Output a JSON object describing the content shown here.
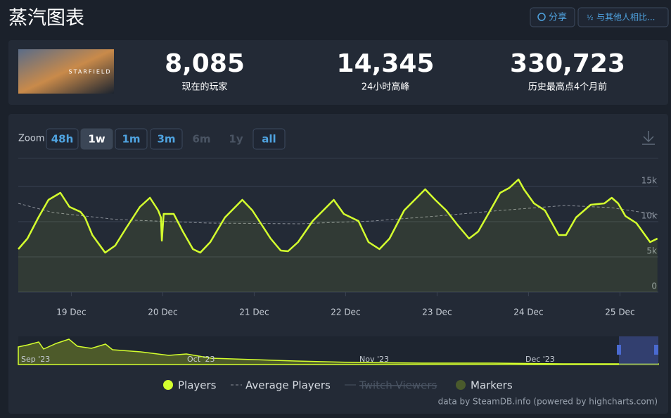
{
  "header": {
    "title": "蒸汽图表",
    "buttons": [
      "分享",
      "与其他人相比..."
    ]
  },
  "game": {
    "image_text": "STARFIELD"
  },
  "stats": [
    {
      "value": "8,085",
      "label": "现在的玩家"
    },
    {
      "value": "14,345",
      "label": "24小时高峰"
    },
    {
      "value": "330,723",
      "label": "历史最高点4个月前"
    }
  ],
  "zoom": {
    "label": "Zoom",
    "buttons": [
      {
        "label": "48h",
        "state": "enabled"
      },
      {
        "label": "1w",
        "state": "active"
      },
      {
        "label": "1m",
        "state": "enabled"
      },
      {
        "label": "3m",
        "state": "enabled"
      },
      {
        "label": "6m",
        "state": "disabled"
      },
      {
        "label": "1y",
        "state": "disabled"
      },
      {
        "label": "all",
        "state": "enabled"
      }
    ]
  },
  "chart_data": {
    "type": "line",
    "xlim": [
      18.42,
      25.42
    ],
    "xticks": [
      {
        "value": 19,
        "label": "19 Dec"
      },
      {
        "value": 20,
        "label": "20 Dec"
      },
      {
        "value": 21,
        "label": "21 Dec"
      },
      {
        "value": 22,
        "label": "22 Dec"
      },
      {
        "value": 23,
        "label": "23 Dec"
      },
      {
        "value": 24,
        "label": "24 Dec"
      },
      {
        "value": 25,
        "label": "25 Dec"
      }
    ],
    "ylim": [
      0,
      19000
    ],
    "yticks": [
      0,
      {
        "value": 5000,
        "label": "5k"
      },
      {
        "value": 10000,
        "label": "10k"
      },
      {
        "value": 15000,
        "label": "15k"
      }
    ],
    "grid": true,
    "series": [
      {
        "name": "Players",
        "color": "#d4ff2e",
        "dash": false,
        "area": true,
        "x": [
          18.42,
          18.52,
          18.64,
          18.75,
          18.88,
          18.98,
          19.1,
          19.15,
          19.23,
          19.37,
          19.48,
          19.6,
          19.75,
          19.86,
          19.95,
          19.98,
          19.99,
          20.01,
          20.12,
          20.22,
          20.33,
          20.41,
          20.52,
          20.68,
          20.87,
          20.98,
          21.08,
          21.18,
          21.29,
          21.37,
          21.48,
          21.64,
          21.87,
          21.98,
          22.14,
          22.25,
          22.37,
          22.48,
          22.64,
          22.87,
          22.98,
          23.1,
          23.22,
          23.35,
          23.45,
          23.56,
          23.69,
          23.79,
          23.89,
          23.95,
          24.06,
          24.18,
          24.33,
          24.41,
          24.52,
          24.68,
          24.83,
          24.91,
          24.98,
          25.06,
          25.18,
          25.33,
          25.41
        ],
        "values": [
          6100,
          7600,
          10600,
          13100,
          14100,
          12100,
          11400,
          10600,
          8100,
          5600,
          6600,
          9100,
          12100,
          13400,
          11600,
          10600,
          7300,
          11100,
          11100,
          8600,
          6100,
          5600,
          7100,
          10600,
          13100,
          11600,
          9600,
          7600,
          5900,
          5800,
          7100,
          10100,
          13100,
          11100,
          10100,
          7100,
          6100,
          7600,
          11600,
          14600,
          13100,
          11600,
          9600,
          7600,
          8600,
          11100,
          14100,
          14800,
          16000,
          14600,
          12600,
          11600,
          8100,
          8100,
          10600,
          12400,
          12600,
          13400,
          12600,
          10800,
          9800,
          7100,
          7600
        ]
      },
      {
        "name": "Average Players",
        "color": "#8a8f98",
        "dash": true,
        "area": false,
        "x": [
          18.42,
          18.8,
          19.5,
          20.5,
          21.5,
          22.3,
          23.0,
          23.7,
          24.4,
          24.9,
          25.41
        ],
        "values": [
          12600,
          11300,
          10300,
          9800,
          9700,
          10100,
          10800,
          11600,
          12300,
          12000,
          11000
        ]
      }
    ],
    "legend_extra": [
      {
        "name": "Twitch Viewers",
        "hidden": true
      },
      {
        "name": "Markers",
        "color": "#4a5a2c"
      }
    ],
    "navigator_labels": [
      "Sep '23",
      "Oct '23",
      "Nov '23",
      "Dec '23"
    ],
    "credits": "data by SteamDB.info (powered by highcharts.com)"
  }
}
